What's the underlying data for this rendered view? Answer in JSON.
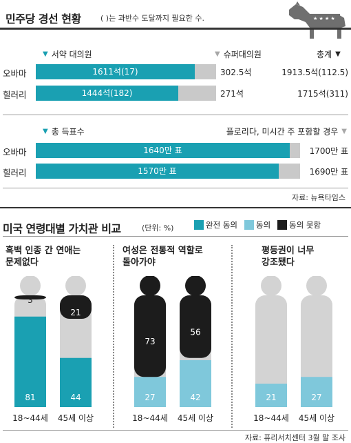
{
  "header": {
    "title": "민주당 경선 현황",
    "note": "( )는 과반수 도달까지 필요한 수.",
    "logo_icon": "democratic-donkey-icon"
  },
  "delegates": {
    "legend_pledged": "서약 대의원",
    "legend_super": "슈퍼대의원",
    "legend_total": "총계",
    "rows": [
      {
        "name": "오바마",
        "pledged_label": "1611석(17)",
        "super_label": "302.5석",
        "total_label": "1913.5석(112.5)",
        "pledged_fraction": 0.88
      },
      {
        "name": "힐러리",
        "pledged_label": "1444석(182)",
        "super_label": "271석",
        "total_label": "1715석(311)",
        "pledged_fraction": 0.79
      }
    ]
  },
  "votes": {
    "legend_votes": "총 득표수",
    "legend_note": "플로리다, 미시간 주 포함할 경우",
    "rows": [
      {
        "name": "오바마",
        "votes_label": "1640만 표",
        "incl_label": "1700만 표",
        "votes_fraction": 0.96
      },
      {
        "name": "힐러리",
        "votes_label": "1570만 표",
        "incl_label": "1690만 표",
        "votes_fraction": 0.92
      }
    ],
    "source": "자료: 뉴욕타임스"
  },
  "survey": {
    "title": "미국 연령대별 가치관 비교",
    "unit": "(단위: %)",
    "source": "자료: 퓨리서치센터 3월 말 조사"
  },
  "chart_data": {
    "type": "bar",
    "stacked": true,
    "series": [
      {
        "name": "완전 동의",
        "color": "#1aa0b2"
      },
      {
        "name": "동의",
        "color": "#7fc8db"
      },
      {
        "name": "동의 못함",
        "color": "#1c1c1c"
      }
    ],
    "groups": [
      {
        "title": "흑백 인종 간 연애는 문제없다",
        "bars": [
          {
            "category": "18~44세",
            "segments": [
              {
                "series": "완전 동의",
                "value": 81
              },
              {
                "series": "동의 못함",
                "value": 3
              }
            ]
          },
          {
            "category": "45세 이상",
            "segments": [
              {
                "series": "완전 동의",
                "value": 44
              },
              {
                "series": "동의 못함",
                "value": 21
              }
            ]
          }
        ]
      },
      {
        "title": "여성은 전통적 역할로 돌아가야",
        "bars": [
          {
            "category": "18~44세",
            "segments": [
              {
                "series": "동의",
                "value": 27
              },
              {
                "series": "동의 못함",
                "value": 73
              }
            ]
          },
          {
            "category": "45세 이상",
            "segments": [
              {
                "series": "동의",
                "value": 42
              },
              {
                "series": "동의 못함",
                "value": 56
              }
            ]
          }
        ]
      },
      {
        "title": "평등권이 너무 강조됐다",
        "bars": [
          {
            "category": "18~44세",
            "segments": [
              {
                "series": "동의",
                "value": 21
              }
            ]
          },
          {
            "category": "45세 이상",
            "segments": [
              {
                "series": "동의",
                "value": 27
              }
            ]
          }
        ]
      }
    ],
    "ylim": [
      0,
      100
    ]
  }
}
